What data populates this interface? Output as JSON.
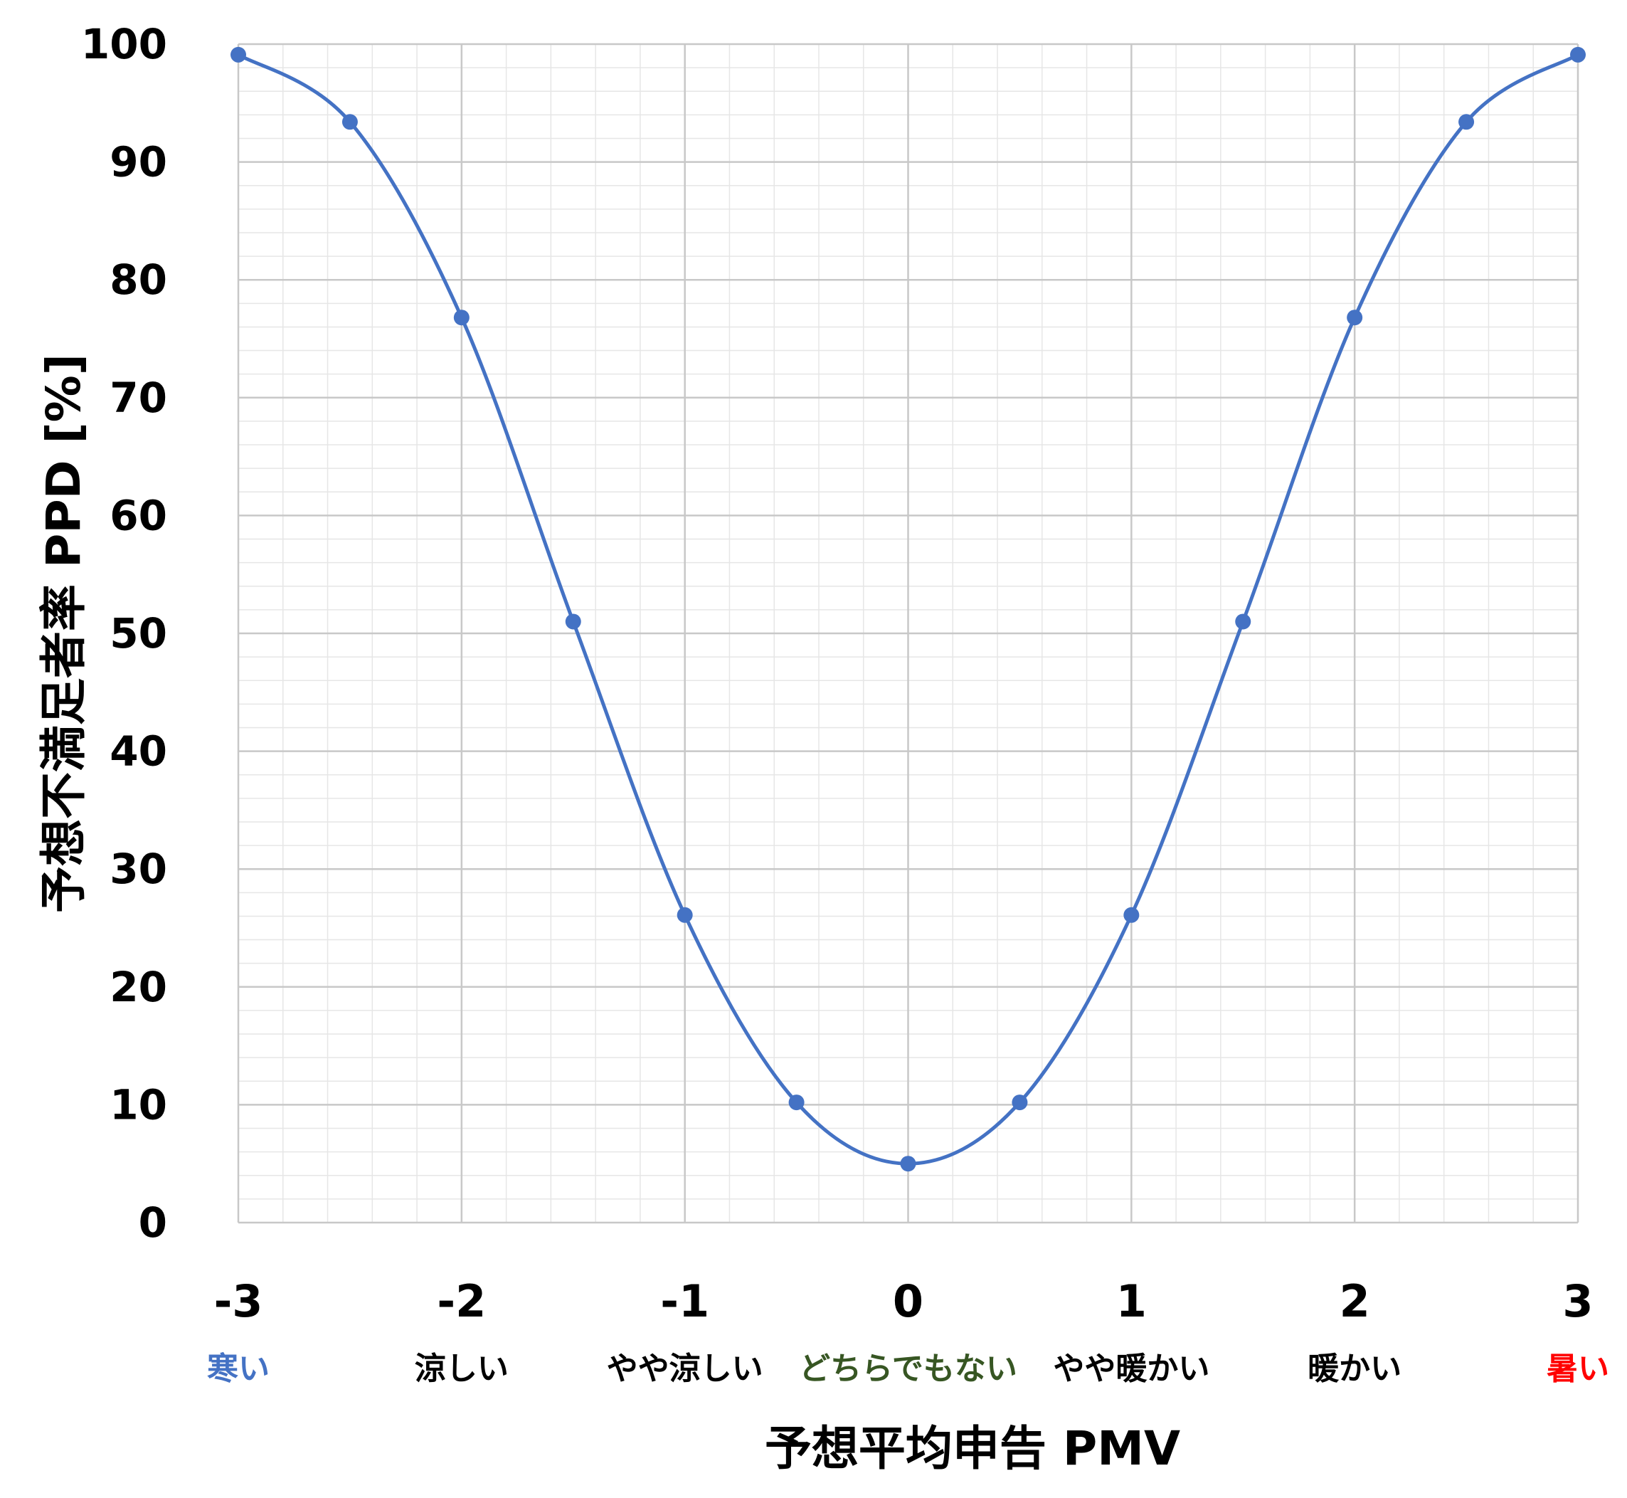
{
  "chart_data": {
    "type": "line",
    "xlabel": "予想平均申告 PMV",
    "ylabel": "予想不満足者率 PPD [%]",
    "xlim": [
      -3,
      3
    ],
    "ylim": [
      0,
      100
    ],
    "x_ticks": [
      "-3",
      "-2",
      "-1",
      "0",
      "1",
      "2",
      "3"
    ],
    "y_ticks": [
      "0",
      "10",
      "20",
      "30",
      "40",
      "50",
      "60",
      "70",
      "80",
      "90",
      "100"
    ],
    "category_labels": [
      {
        "x": -3,
        "text": "寒い",
        "color": "#4472c4"
      },
      {
        "x": -2,
        "text": "涼しい",
        "color": "#000000"
      },
      {
        "x": -1,
        "text": "やや涼しい",
        "color": "#000000"
      },
      {
        "x": 0,
        "text": "どちらでもない",
        "color": "#375623"
      },
      {
        "x": 1,
        "text": "やや暖かい",
        "color": "#000000"
      },
      {
        "x": 2,
        "text": "暖かい",
        "color": "#000000"
      },
      {
        "x": 3,
        "text": "暑い",
        "color": "#ff0000"
      }
    ],
    "grid": true,
    "series": [
      {
        "color": "#4472c4",
        "x": [
          -3,
          -2.5,
          -2,
          -1.5,
          -1,
          -0.5,
          0,
          0.5,
          1,
          1.5,
          2,
          2.5,
          3
        ],
        "y": [
          99.1,
          93.4,
          76.8,
          51.0,
          26.1,
          10.2,
          5.0,
          10.2,
          26.1,
          51.0,
          76.8,
          93.4,
          99.1
        ]
      }
    ]
  }
}
